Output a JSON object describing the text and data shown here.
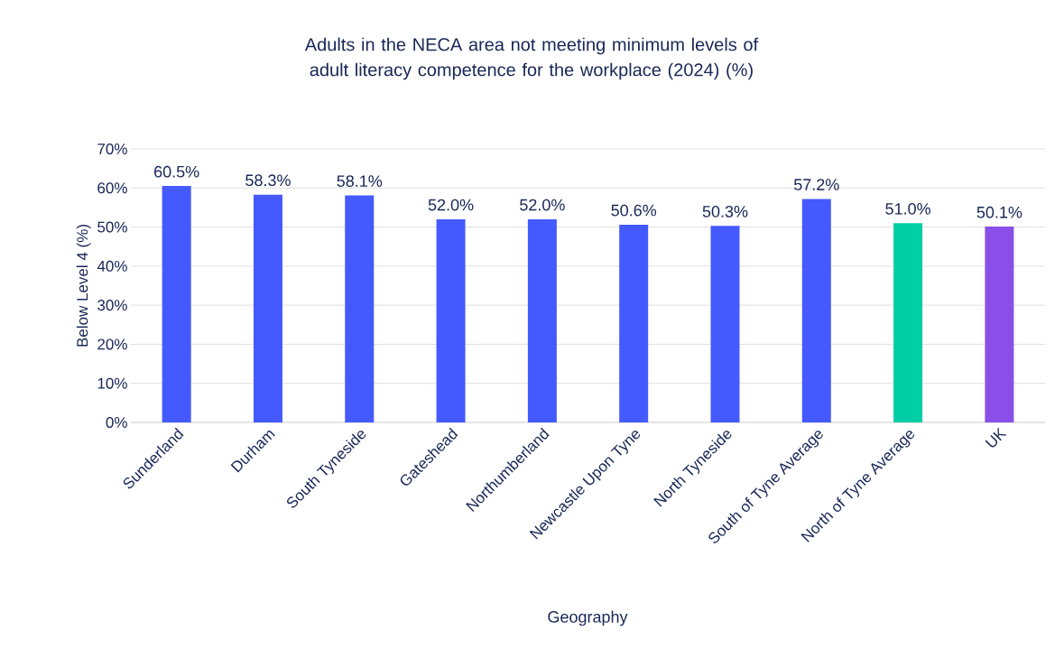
{
  "chart_data": {
    "type": "bar",
    "title": "Adults in the NECA area not meeting minimum levels of adult literacy competence for the workplace (2024) (%)",
    "xlabel": "Geography",
    "ylabel": "Below Level 4 (%)",
    "categories": [
      "Sunderland",
      "Durham",
      "South Tyneside",
      "Gateshead",
      "Northumberland",
      "Newcastle Upon Tyne",
      "North Tyneside",
      "South of Tyne Average",
      "North of Tyne Average",
      "UK"
    ],
    "values": [
      60.5,
      58.3,
      58.1,
      52.0,
      52.0,
      50.6,
      50.3,
      57.2,
      51.0,
      50.1
    ],
    "value_labels": [
      "60.5%",
      "58.3%",
      "58.1%",
      "52.0%",
      "52.0%",
      "50.6%",
      "50.3%",
      "57.2%",
      "51.0%",
      "50.1%"
    ],
    "colors": [
      "#4459fe",
      "#4459fe",
      "#4459fe",
      "#4459fe",
      "#4459fe",
      "#4459fe",
      "#4459fe",
      "#4459fe",
      "#00cfa5",
      "#8a4fe8"
    ],
    "ylim": [
      0,
      70
    ],
    "yticks": [
      {
        "value": 0,
        "label": "0%"
      },
      {
        "value": 10,
        "label": "10%"
      },
      {
        "value": 20,
        "label": "20%"
      },
      {
        "value": 30,
        "label": "30%"
      },
      {
        "value": 40,
        "label": "40%"
      },
      {
        "value": 50,
        "label": "50%"
      },
      {
        "value": 60,
        "label": "60%"
      },
      {
        "value": 70,
        "label": "70%"
      }
    ],
    "grid": "y"
  }
}
